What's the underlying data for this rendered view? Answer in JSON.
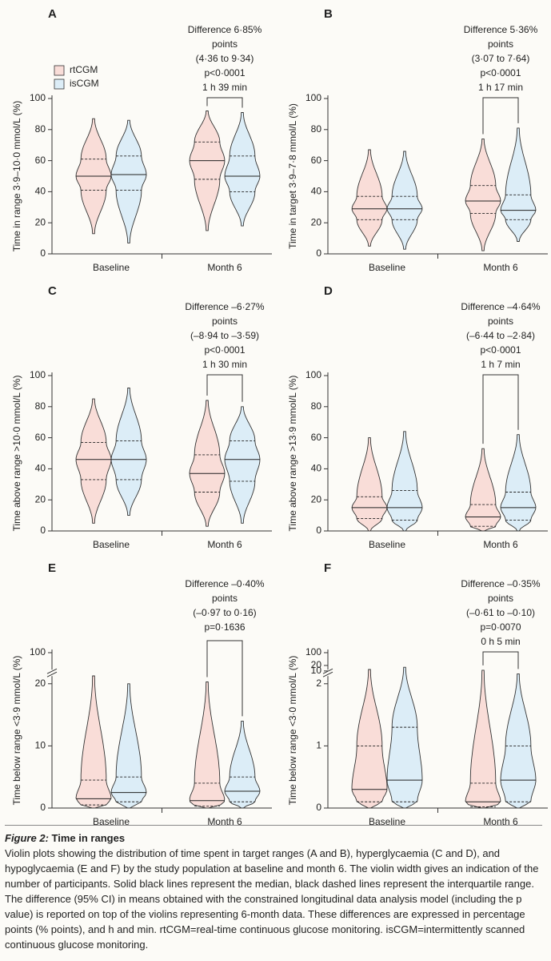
{
  "chart_data": [
    {
      "type": "violin",
      "letter": "A",
      "ylabel": "Time in range 3·9–10·0 mmol/L (%)",
      "annotation": [
        "Difference 6·85%",
        "points",
        "(4·36 to 9·34)",
        "p<0·0001",
        "1 h 39 min"
      ],
      "categories": [
        "Baseline",
        "Month 6"
      ],
      "ylim": [
        0,
        100
      ],
      "yticks": [
        0,
        20,
        40,
        60,
        80,
        100
      ],
      "legend": "top-left",
      "series": [
        {
          "name": "rtCGM",
          "color": "#f9ddd8",
          "min": [
            13,
            15
          ],
          "q1": [
            41,
            48
          ],
          "median": [
            50,
            60
          ],
          "q3": [
            61,
            72
          ],
          "max": [
            87,
            92
          ]
        },
        {
          "name": "isCGM",
          "color": "#dcedf7",
          "min": [
            7,
            18
          ],
          "q1": [
            41,
            40
          ],
          "median": [
            51,
            50
          ],
          "q3": [
            63,
            63
          ],
          "max": [
            86,
            91
          ]
        }
      ]
    },
    {
      "type": "violin",
      "letter": "B",
      "ylabel": "Time in target 3·9–7·8 mmol/L (%)",
      "annotation": [
        "Difference 5·36%",
        "points",
        "(3·07 to 7·64)",
        "p<0·0001",
        "1 h 17 min"
      ],
      "categories": [
        "Baseline",
        "Month 6"
      ],
      "ylim": [
        0,
        100
      ],
      "yticks": [
        0,
        20,
        40,
        60,
        80,
        100
      ],
      "series": [
        {
          "color": "#f9ddd8",
          "min": [
            5,
            2
          ],
          "q1": [
            22,
            26
          ],
          "median": [
            29,
            34
          ],
          "q3": [
            37,
            44
          ],
          "max": [
            67,
            74
          ]
        },
        {
          "color": "#dcedf7",
          "min": [
            3,
            8
          ],
          "q1": [
            22,
            22
          ],
          "median": [
            29,
            28
          ],
          "q3": [
            37,
            38
          ],
          "max": [
            66,
            81
          ]
        }
      ]
    },
    {
      "type": "violin",
      "letter": "C",
      "ylabel": "Time above range >10·0 mmol/L (%)",
      "annotation": [
        "Difference –6·27%",
        "points",
        "(–8·94 to –3·59)",
        "p<0·0001",
        "1 h 30 min"
      ],
      "categories": [
        "Baseline",
        "Month 6"
      ],
      "ylim": [
        0,
        100
      ],
      "yticks": [
        0,
        20,
        40,
        60,
        80,
        100
      ],
      "series": [
        {
          "color": "#f9ddd8",
          "min": [
            5,
            3
          ],
          "q1": [
            33,
            25
          ],
          "median": [
            46,
            37
          ],
          "q3": [
            57,
            49
          ],
          "max": [
            85,
            84
          ]
        },
        {
          "color": "#dcedf7",
          "min": [
            10,
            5
          ],
          "q1": [
            33,
            32
          ],
          "median": [
            46,
            46
          ],
          "q3": [
            58,
            58
          ],
          "max": [
            92,
            80
          ]
        }
      ]
    },
    {
      "type": "violin",
      "letter": "D",
      "ylabel": "Time above range >13·9 mmol/L (%)",
      "annotation": [
        "Difference –4·64%",
        "points",
        "(–6·44 to –2·84)",
        "p<0·0001",
        "1 h 7 min"
      ],
      "categories": [
        "Baseline",
        "Month 6"
      ],
      "ylim": [
        0,
        100
      ],
      "yticks": [
        0,
        20,
        40,
        60,
        80,
        100
      ],
      "series": [
        {
          "color": "#f9ddd8",
          "min": [
            0,
            0
          ],
          "q1": [
            8,
            3
          ],
          "median": [
            15,
            9
          ],
          "q3": [
            22,
            17
          ],
          "max": [
            60,
            53
          ]
        },
        {
          "color": "#dcedf7",
          "min": [
            0,
            0
          ],
          "q1": [
            7,
            7
          ],
          "median": [
            15,
            15
          ],
          "q3": [
            26,
            25
          ],
          "max": [
            64,
            62
          ]
        }
      ]
    },
    {
      "type": "violin",
      "letter": "E",
      "ylabel": "Time below range <3·9 mmol/L (%)",
      "annotation": [
        "Difference –0·40%",
        "points",
        "(–0·97 to 0·16)",
        "p=0·1636"
      ],
      "categories": [
        "Baseline",
        "Month 6"
      ],
      "ylim": [
        0,
        100
      ],
      "ybreak": 20,
      "yticks": [
        0,
        10,
        20,
        100
      ],
      "series": [
        {
          "color": "#f9ddd8",
          "min": [
            0,
            0
          ],
          "q1": [
            0.5,
            0.3
          ],
          "median": [
            1.5,
            1.2
          ],
          "q3": [
            4.5,
            4
          ],
          "max": [
            30,
            22
          ]
        },
        {
          "color": "#dcedf7",
          "min": [
            0,
            0
          ],
          "q1": [
            1,
            1
          ],
          "median": [
            2.5,
            2.7
          ],
          "q3": [
            5,
            5
          ],
          "max": [
            20,
            14
          ]
        }
      ]
    },
    {
      "type": "violin",
      "letter": "F",
      "ylabel": "Time below range <3·0 mmol/L (%)",
      "annotation": [
        "Difference –0·35%",
        "points",
        "(–0·61 to –0·10)",
        "p=0·0070",
        "0 h 5 min"
      ],
      "categories": [
        "Baseline",
        "Month 6"
      ],
      "ylim": [
        0,
        100
      ],
      "ybreak": 2,
      "yticks": [
        0,
        1,
        2,
        10,
        20,
        100
      ],
      "series": [
        {
          "color": "#f9ddd8",
          "min": [
            0,
            0
          ],
          "q1": [
            0.1,
            0.02
          ],
          "median": [
            0.3,
            0.1
          ],
          "q3": [
            1,
            0.4
          ],
          "max": [
            12,
            11
          ]
        },
        {
          "color": "#dcedf7",
          "min": [
            0,
            0
          ],
          "q1": [
            0.1,
            0.1
          ],
          "median": [
            0.45,
            0.45
          ],
          "q3": [
            1.3,
            1
          ],
          "max": [
            16,
            7
          ]
        }
      ]
    }
  ],
  "caption": {
    "label": "Figure 2:",
    "title": "Time in ranges",
    "text": "Violin plots showing the distribution of time spent in target ranges (A and B), hyperglycaemia (C and D), and hypoglycaemia (E and F) by the study population at baseline and month 6. The violin width gives an indication of the number of participants. Solid black lines represent the median, black dashed lines represent the interquartile range. The difference (95% CI) in means obtained with the constrained longitudinal data analysis model (including the p value) is reported on top of the violins representing 6-month data. These differences are expressed in percentage points (% points), and h and min. rtCGM=real-time continuous glucose monitoring. isCGM=intermittently scanned continuous glucose monitoring."
  }
}
